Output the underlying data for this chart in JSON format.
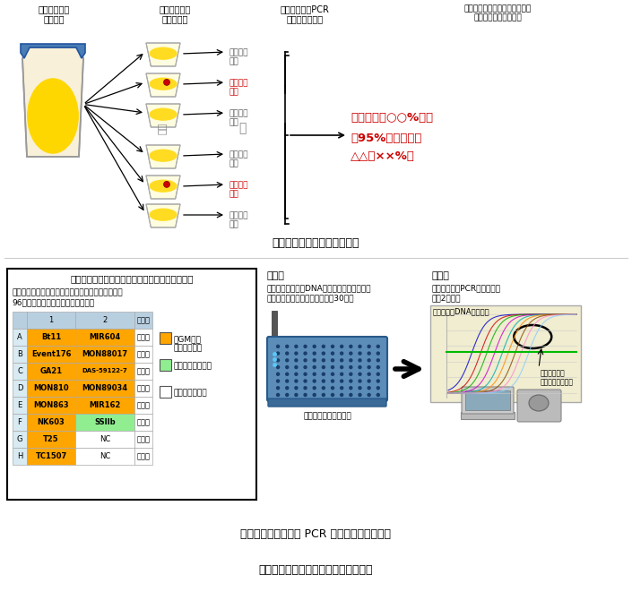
{
  "fig1_caption": "図１　グループ検査法の概要",
  "fig2_caption": "図２　リアルタイム PCR アレイ法の分析手順",
  "bottom_text": "（真野潤一、高畠令王奈、橘田和美）",
  "fig1_col_headers": [
    "トウモロコシ\n分析試料",
    "一定粒数ずつ\nグループ化",
    "リアルタイムPCR\nによる定性分析",
    "分析試料中の組換え体混入率を\n統計学的に評価・推定"
  ],
  "red_result_text_line1": "組換え体　○○%以下",
  "red_result_text_line2": "（95%信頼区間は",
  "red_result_text_line3": "△△～××%）",
  "result_labels": [
    {
      "text": "組換え体\n陰性",
      "positive": false
    },
    {
      "text": "組換え体\n陽性",
      "positive": true
    },
    {
      "text": "組換え体\n陰性",
      "positive": false
    },
    {
      "text": "組換え体\n陰性",
      "positive": false
    },
    {
      "text": "組換え体\n陽性",
      "positive": true
    },
    {
      "text": "組換え体\n陰性",
      "positive": false
    }
  ],
  "fig2_box_title": "あらかじめアレイ分析用プレートを作製しておく",
  "fig2_box_subtitle1": "各標的を検知するためのプライマー及びプローブを",
  "fig2_box_subtitle2": "96ウェルプレートの各ウェルに添加",
  "table_headers": [
    "",
    "1",
    "2",
    "・・・"
  ],
  "table_rows": [
    [
      "A",
      "Bt11",
      "MIR604",
      "・・・"
    ],
    [
      "B",
      "Event176",
      "MON88017",
      "・・・"
    ],
    [
      "C",
      "GA21",
      "DAS-59122-7",
      "・・・"
    ],
    [
      "D",
      "MON810",
      "MON89034",
      "・・・"
    ],
    [
      "E",
      "MON863",
      "MIR162",
      "・・・"
    ],
    [
      "F",
      "NK603",
      "SSIIb",
      "・・・"
    ],
    [
      "G",
      "T25",
      "NC",
      "・・・"
    ],
    [
      "H",
      "TC1507",
      "NC",
      "・・・"
    ]
  ],
  "col2_orange": [
    "MIR604",
    "MON88017",
    "DAS-59122-7",
    "MON89034",
    "MIR162"
  ],
  "col2_green": [
    "SSIIb"
  ],
  "col2_white": [
    "NC"
  ],
  "legend_items": [
    {
      "color": "#FFA500",
      "line1": "：GM系統",
      "line2": "　特異的検出"
    },
    {
      "color": "#90EE90",
      "line1": "：作物特異的検出",
      "line2": ""
    },
    {
      "color": "#FFFFFF",
      "line1": "：コントロール",
      "line2": ""
    }
  ],
  "op1_title": "操作１",
  "op1_text1": "検体から抽出したDNAと酵素試薬を混合し、",
  "op1_text2": "プレートの各ウェルに添加（約30分）",
  "op2_title": "操作２",
  "op2_text1": "リアルタイムPCR装置で分析",
  "op2_text2": "（約2時間）",
  "graph_label": "各ウェルのDNA増幅曲線",
  "graph_annotation1": "閾値を設けて",
  "graph_annotation2": "陽性・陰性を判定",
  "plate_label": "アレイ分析用プレート",
  "table_orange": "#FFA500",
  "table_green": "#90EE90",
  "table_header_bg": "#B8CFE0",
  "table_row_label_bg": "#D8EAF2"
}
